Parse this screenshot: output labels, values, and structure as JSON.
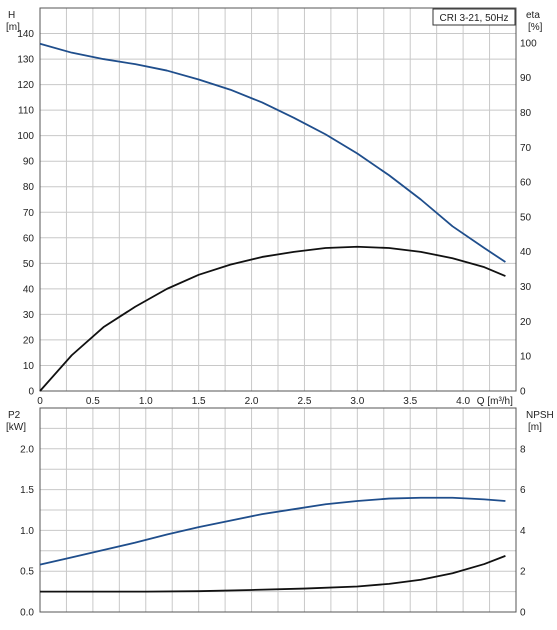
{
  "chart_data": [
    {
      "type": "line",
      "title": "CRI 3-21, 50Hz",
      "xlabel": "Q [m³/h]",
      "ylabel_left": "H",
      "ylabel_left_unit": "[m]",
      "ylabel_right": "eta",
      "ylabel_right_unit": "[%]",
      "xlim": [
        0,
        4.5
      ],
      "ylim_left": [
        0,
        150
      ],
      "ylim_right": [
        0,
        110
      ],
      "x_ticks": [
        0,
        0.5,
        1.0,
        1.5,
        2.0,
        2.5,
        3.0,
        3.5,
        4.0
      ],
      "x_tick_labels": [
        "0",
        "0.5",
        "1.0",
        "1.5",
        "2.0",
        "2.5",
        "3.0",
        "3.5",
        "4.0"
      ],
      "y_ticks_left": [
        0,
        10,
        20,
        30,
        40,
        50,
        60,
        70,
        80,
        90,
        100,
        110,
        120,
        130,
        140
      ],
      "y_ticks_right": [
        0,
        10,
        20,
        30,
        40,
        50,
        60,
        70,
        80,
        90,
        100
      ],
      "grid": true,
      "series": [
        {
          "axis": "left",
          "color": "#1f4e8c",
          "x": [
            0,
            0.3,
            0.6,
            0.9,
            1.2,
            1.5,
            1.8,
            2.1,
            2.4,
            2.7,
            3.0,
            3.3,
            3.6,
            3.9,
            4.2,
            4.4
          ],
          "y": [
            136,
            132.5,
            130,
            128,
            125.5,
            122,
            118,
            113,
            107,
            100.5,
            93,
            84.5,
            75,
            64.5,
            56,
            50.5
          ]
        },
        {
          "axis": "left",
          "color": "#111111",
          "x": [
            0,
            0.3,
            0.6,
            0.9,
            1.2,
            1.5,
            1.8,
            2.1,
            2.4,
            2.7,
            3.0,
            3.3,
            3.6,
            3.9,
            4.2,
            4.4
          ],
          "y": [
            0,
            14,
            25,
            33,
            40,
            45.5,
            49.5,
            52.5,
            54.5,
            56,
            56.5,
            56,
            54.5,
            52,
            48.5,
            45
          ]
        }
      ]
    },
    {
      "type": "line",
      "xlabel": "",
      "ylabel_left": "P2",
      "ylabel_left_unit": "[kW]",
      "ylabel_right": "NPSH",
      "ylabel_right_unit": "[m]",
      "xlim": [
        0,
        4.5
      ],
      "ylim_left": [
        0,
        2.5
      ],
      "ylim_right": [
        0,
        10
      ],
      "y_ticks_left": [
        0.0,
        0.5,
        1.0,
        1.5,
        2.0
      ],
      "y_tick_labels_left": [
        "0.0",
        "0.5",
        "1.0",
        "1.5",
        "2.0"
      ],
      "y_ticks_right": [
        0,
        2,
        4,
        6,
        8
      ],
      "grid": true,
      "series": [
        {
          "axis": "left",
          "color": "#1f4e8c",
          "x": [
            0,
            0.3,
            0.6,
            0.9,
            1.2,
            1.5,
            1.8,
            2.1,
            2.4,
            2.7,
            3.0,
            3.3,
            3.6,
            3.9,
            4.2,
            4.4
          ],
          "y": [
            0.58,
            0.67,
            0.76,
            0.85,
            0.95,
            1.04,
            1.12,
            1.2,
            1.26,
            1.32,
            1.36,
            1.39,
            1.4,
            1.4,
            1.38,
            1.36
          ]
        },
        {
          "axis": "right",
          "color": "#111111",
          "x": [
            0,
            0.5,
            1.0,
            1.5,
            2.0,
            2.5,
            3.0,
            3.3,
            3.6,
            3.9,
            4.2,
            4.4
          ],
          "y": [
            1.0,
            1.0,
            1.0,
            1.02,
            1.08,
            1.15,
            1.25,
            1.38,
            1.58,
            1.9,
            2.35,
            2.75
          ]
        }
      ]
    }
  ]
}
